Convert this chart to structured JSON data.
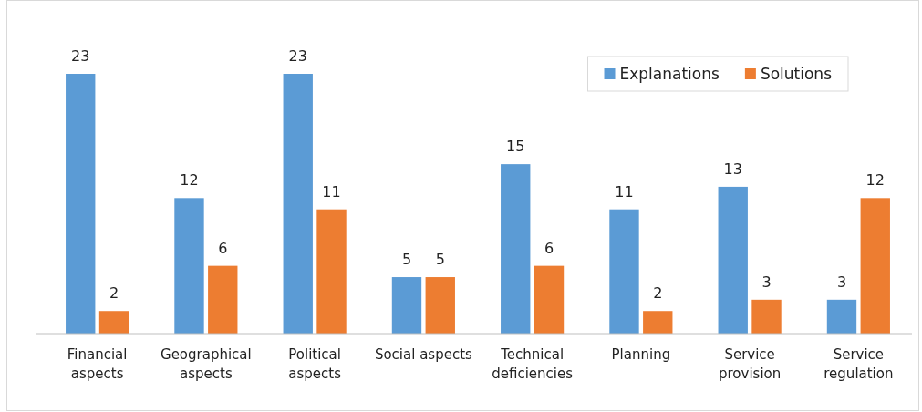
{
  "chart_data": {
    "type": "bar",
    "categories": [
      "Financial aspects",
      "Geographical aspects",
      "Political aspects",
      "Social aspects",
      "Technical deficiencies",
      "Planning",
      "Service provision",
      "Service regulation"
    ],
    "series": [
      {
        "name": "Explanations",
        "color": "#5b9bd5",
        "values": [
          23,
          12,
          23,
          5,
          15,
          11,
          13,
          3
        ]
      },
      {
        "name": "Solutions",
        "color": "#ed7d31",
        "values": [
          2,
          6,
          11,
          5,
          6,
          2,
          3,
          12
        ]
      }
    ],
    "data_labels": true,
    "legend": "top right",
    "grid": false
  }
}
